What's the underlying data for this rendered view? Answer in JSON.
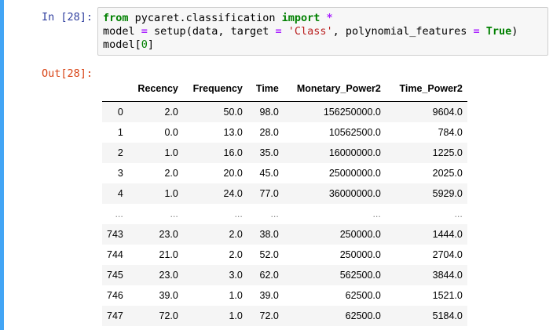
{
  "cell": {
    "in_prompt": "In [28]:",
    "out_prompt": "Out[28]:",
    "code_lines": [
      [
        {
          "t": "from",
          "c": "kw"
        },
        {
          "t": " pycaret.classification ",
          "c": ""
        },
        {
          "t": "import",
          "c": "kw"
        },
        {
          "t": " ",
          "c": ""
        },
        {
          "t": "*",
          "c": "op"
        }
      ],
      [
        {
          "t": "model ",
          "c": ""
        },
        {
          "t": "=",
          "c": "op"
        },
        {
          "t": " setup(data, target ",
          "c": ""
        },
        {
          "t": "=",
          "c": "op"
        },
        {
          "t": " ",
          "c": ""
        },
        {
          "t": "'Class'",
          "c": "str"
        },
        {
          "t": ", polynomial_features ",
          "c": ""
        },
        {
          "t": "=",
          "c": "op"
        },
        {
          "t": " ",
          "c": ""
        },
        {
          "t": "True",
          "c": "kw"
        },
        {
          "t": ")",
          "c": ""
        }
      ],
      [
        {
          "t": "model[",
          "c": ""
        },
        {
          "t": "0",
          "c": "num"
        },
        {
          "t": "]",
          "c": ""
        }
      ]
    ]
  },
  "table": {
    "columns": [
      "",
      "Recency",
      "Frequency",
      "Time",
      "Monetary_Power2",
      "Time_Power2"
    ],
    "rows": [
      [
        "0",
        "2.0",
        "50.0",
        "98.0",
        "156250000.0",
        "9604.0"
      ],
      [
        "1",
        "0.0",
        "13.0",
        "28.0",
        "10562500.0",
        "784.0"
      ],
      [
        "2",
        "1.0",
        "16.0",
        "35.0",
        "16000000.0",
        "1225.0"
      ],
      [
        "3",
        "2.0",
        "20.0",
        "45.0",
        "25000000.0",
        "2025.0"
      ],
      [
        "4",
        "1.0",
        "24.0",
        "77.0",
        "36000000.0",
        "5929.0"
      ],
      [
        "...",
        "...",
        "...",
        "...",
        "...",
        "..."
      ],
      [
        "743",
        "23.0",
        "2.0",
        "38.0",
        "250000.0",
        "1444.0"
      ],
      [
        "744",
        "21.0",
        "2.0",
        "52.0",
        "250000.0",
        "2704.0"
      ],
      [
        "745",
        "23.0",
        "3.0",
        "62.0",
        "562500.0",
        "3844.0"
      ],
      [
        "746",
        "39.0",
        "1.0",
        "39.0",
        "62500.0",
        "1521.0"
      ],
      [
        "747",
        "72.0",
        "1.0",
        "72.0",
        "62500.0",
        "5184.0"
      ]
    ]
  }
}
